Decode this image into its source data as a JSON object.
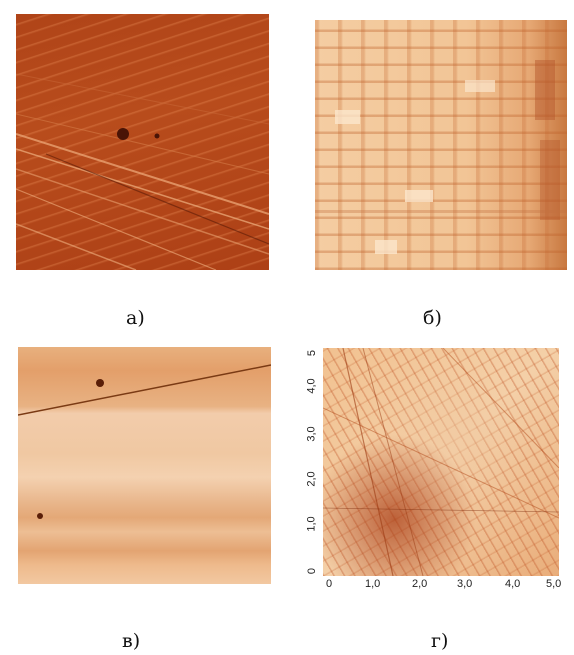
{
  "panels": [
    {
      "caption": "а)",
      "colors": {
        "base": "#b5471a",
        "streak": "#e2935c",
        "dark": "#6b1e08"
      }
    },
    {
      "caption": "б)",
      "colors": {
        "base": "#f2c79a",
        "light": "#fbe9d4",
        "dark": "#b95a28"
      }
    },
    {
      "caption": "в)",
      "colors": {
        "base": "#f0c194",
        "band": "#e6a772",
        "dark": "#7a3a14"
      }
    },
    {
      "caption": "г)",
      "colors": {
        "base": "#f3c99c",
        "dark": "#9c3a12",
        "mid": "#d9824a"
      }
    }
  ],
  "axis_g": {
    "x_ticks": [
      "0",
      "1,0",
      "2,0",
      "3,0",
      "4,0",
      "5,0"
    ],
    "y_ticks": [
      "0",
      "1,0",
      "2,0",
      "3,0",
      "4,0",
      "5"
    ]
  }
}
